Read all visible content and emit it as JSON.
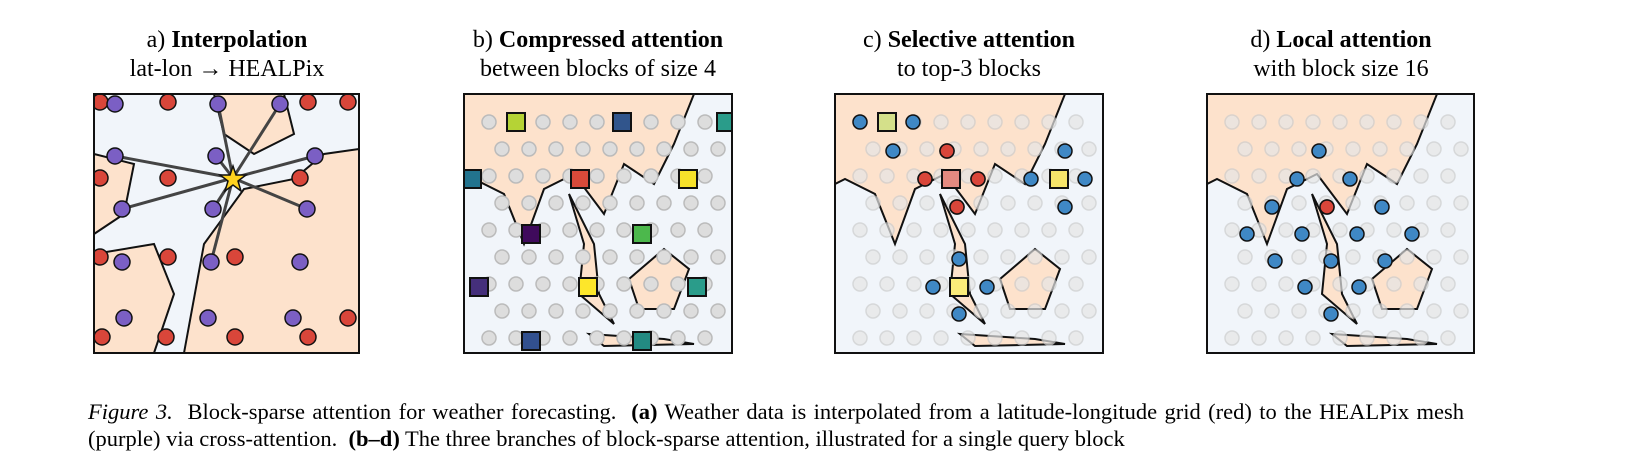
{
  "panels": [
    {
      "label": "a)",
      "title": "Interpolation",
      "subtitle": "lat-lon → HEALPix"
    },
    {
      "label": "b)",
      "title": "Compressed attention",
      "subtitle": "between blocks of size 4"
    },
    {
      "label": "c)",
      "title": "Selective attention",
      "subtitle": "to top-3 blocks"
    },
    {
      "label": "d)",
      "title": "Local attention",
      "subtitle": "with block size 16"
    }
  ],
  "caption": {
    "label": "Figure 3.",
    "text1": "Block-sparse attention for weather forecasting.",
    "a": "(a)",
    "text2": "Weather data is interpolated from a latitude-longitude grid (red) to the HEALPix mesh (purple) via cross-attention.",
    "bd": "(b–d)",
    "text3": "The three branches of block-sparse attention, illustrated for a single query block"
  }
}
